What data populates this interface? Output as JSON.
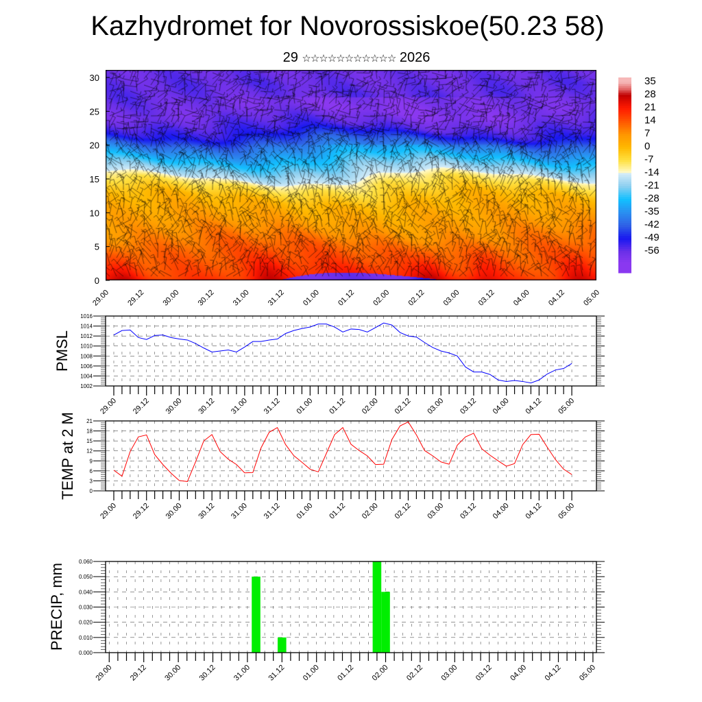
{
  "title": "Kazhydromet for Novorossiskoe(50.23 58)",
  "subtitle": {
    "day": "29",
    "stars": "☆☆☆☆☆☆☆☆☆☆☆",
    "year": "2026"
  },
  "time_labels": [
    "29.00",
    "29.12",
    "30.00",
    "30.12",
    "31.00",
    "31.12",
    "01.00",
    "01.12",
    "02.00",
    "02.12",
    "03.00",
    "03.12",
    "04.00",
    "04.12",
    "05.00"
  ],
  "chart_data": [
    {
      "type": "heatmap",
      "name": "temperature-wind-cross-section",
      "title": "",
      "xlabel": "",
      "ylabel": "",
      "ylim": [
        0,
        31
      ],
      "yticks": [
        "0",
        "5",
        "10",
        "15",
        "20",
        "25",
        "30"
      ],
      "colorbar_labels": [
        "35",
        "28",
        "21",
        "14",
        "7",
        "0",
        "-7",
        "-14",
        "-21",
        "-28",
        "-35",
        "-42",
        "-49",
        "-56"
      ],
      "colorscale": [
        [
          35,
          "#f6b8b8"
        ],
        [
          31,
          "#e06060"
        ],
        [
          28,
          "#c00000"
        ],
        [
          21,
          "#ff1a00"
        ],
        [
          14,
          "#ff5500"
        ],
        [
          7,
          "#ff9500"
        ],
        [
          0,
          "#ffb800"
        ],
        [
          -7,
          "#ffe040"
        ],
        [
          -13.9,
          "#fffbd0"
        ],
        [
          -14,
          "#d6ecf8"
        ],
        [
          -21,
          "#8ccff0"
        ],
        [
          -28,
          "#12c0ff"
        ],
        [
          -35,
          "#2a8ff0"
        ],
        [
          -42,
          "#2f62e6"
        ],
        [
          -49,
          "#1818f0"
        ],
        [
          -56,
          "#6a30e8"
        ],
        [
          -62,
          "#8a38f0"
        ]
      ],
      "vertical_profile_approx": [
        [
          0,
          20
        ],
        [
          2,
          16
        ],
        [
          5,
          12
        ],
        [
          8,
          6
        ],
        [
          12,
          0
        ],
        [
          14.5,
          -9
        ],
        [
          15.5,
          -16
        ],
        [
          18,
          -28
        ],
        [
          20,
          -38
        ],
        [
          22,
          -50
        ],
        [
          25,
          -58
        ],
        [
          28,
          -55
        ],
        [
          31,
          -57
        ]
      ],
      "warm_surface_spots": [
        "29.06",
        "31.09",
        "02.09",
        "03.18",
        "04.21"
      ],
      "overlay": "wind barbs"
    },
    {
      "type": "line",
      "name": "pmsl",
      "ylabel": "PMSL",
      "ylim": [
        1002,
        1016
      ],
      "yticks": [
        "1002",
        "1004",
        "1006",
        "1008",
        "1010",
        "1012",
        "1014",
        "1016"
      ],
      "color": "#0000ff",
      "interval_hours": 3,
      "values": [
        1012.2,
        1013.1,
        1013.2,
        1011.7,
        1011.3,
        1012.1,
        1012.2,
        1011.7,
        1011.4,
        1011.2,
        1010.5,
        1009.6,
        1008.8,
        1009.0,
        1009.2,
        1008.8,
        1009.8,
        1010.9,
        1010.9,
        1011.2,
        1011.4,
        1012.5,
        1013.1,
        1013.5,
        1013.8,
        1014.4,
        1014.4,
        1013.8,
        1012.8,
        1013.4,
        1013.3,
        1012.8,
        1013.7,
        1014.6,
        1014.2,
        1012.7,
        1012.0,
        1011.8,
        1010.7,
        1009.7,
        1009.0,
        1008.6,
        1008.0,
        1005.8,
        1004.8,
        1004.8,
        1004.3,
        1003.2,
        1002.9,
        1003.1,
        1002.9,
        1002.6,
        1003.2,
        1004.4,
        1005.2,
        1005.5,
        1006.5
      ]
    },
    {
      "type": "line",
      "name": "temp-2m",
      "ylabel": "TEMP at 2 M",
      "ylim": [
        0,
        21
      ],
      "yticks": [
        "0",
        "3",
        "6",
        "9",
        "12",
        "15",
        "18",
        "21"
      ],
      "color": "#ff0000",
      "interval_hours": 3,
      "values": [
        6.2,
        4.4,
        11.8,
        16.2,
        16.8,
        10.9,
        7.9,
        5.3,
        3.1,
        2.8,
        8.7,
        15.0,
        16.9,
        11.8,
        9.5,
        7.9,
        5.4,
        5.5,
        12.9,
        17.6,
        19.0,
        13.9,
        10.6,
        8.6,
        6.5,
        5.7,
        11.3,
        16.9,
        19.0,
        14.0,
        12.1,
        10.5,
        7.9,
        8.0,
        15.4,
        19.5,
        20.7,
        16.8,
        12.1,
        10.5,
        8.7,
        8.0,
        13.7,
        16.2,
        17.3,
        12.6,
        10.7,
        9.0,
        7.4,
        8.2,
        13.9,
        16.9,
        17.0,
        13.1,
        9.4,
        6.5,
        4.9
      ]
    },
    {
      "type": "bar",
      "name": "precip",
      "ylabel": "PRECIP, mm",
      "ylim": [
        0,
        0.06
      ],
      "yticks": [
        "0.000",
        "0.010",
        "0.020",
        "0.030",
        "0.040",
        "0.050",
        "0.060"
      ],
      "color": "#00ee00",
      "interval_hours": 3,
      "values": [
        0,
        0,
        0,
        0,
        0,
        0,
        0,
        0,
        0,
        0,
        0,
        0,
        0,
        0,
        0,
        0,
        0,
        0.05,
        0,
        0,
        0.01,
        0,
        0,
        0,
        0,
        0,
        0,
        0,
        0,
        0,
        0,
        0.06,
        0.04,
        0,
        0,
        0,
        0,
        0,
        0,
        0,
        0,
        0,
        0,
        0,
        0,
        0,
        0,
        0,
        0,
        0,
        0,
        0,
        0,
        0,
        0,
        0,
        0
      ]
    }
  ]
}
